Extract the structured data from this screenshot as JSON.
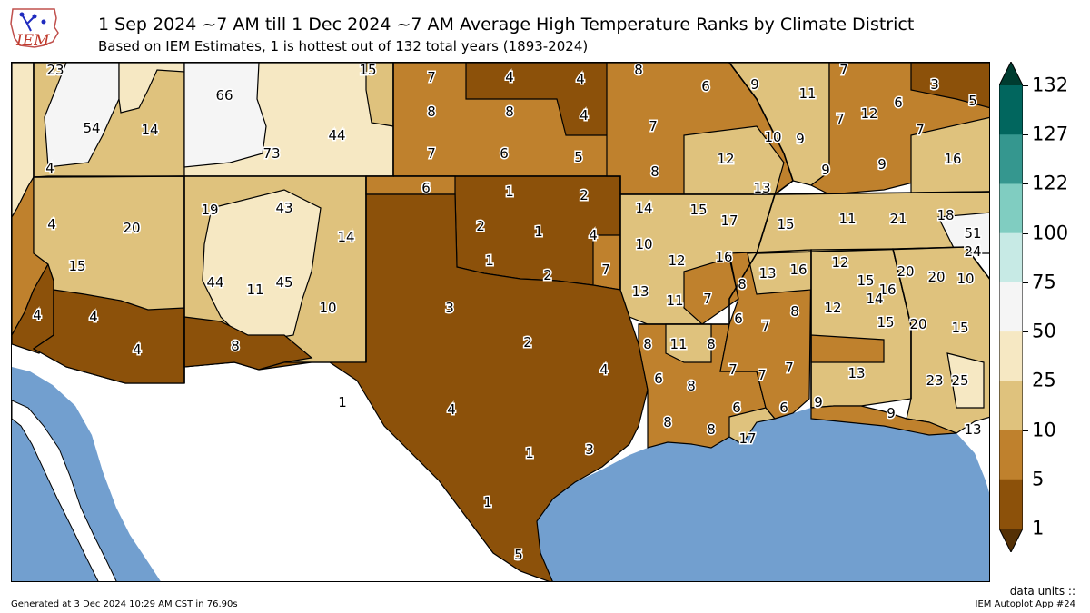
{
  "title": "1 Sep 2024 ~7 AM till 1 Dec 2024 ~7 AM Average High Temperature Ranks by Climate District",
  "subtitle": "Based on IEM Estimates, 1 is hottest out of 132 total years (1893-2024)",
  "logo_text": "IEM",
  "footer": {
    "generated": "Generated at 3 Dec 2024 10:29 AM CST in 76.90s",
    "units": "data units ::",
    "app": "IEM Autoplot App #24"
  },
  "colorbar": {
    "bins": [
      1,
      5,
      10,
      25,
      50,
      75,
      100,
      122,
      127,
      132
    ],
    "colors": [
      "#8c510a",
      "#bf812d",
      "#dfc27d",
      "#f6e8c3",
      "#f5f5f5",
      "#c7eae5",
      "#80cdc1",
      "#35978f",
      "#01665e"
    ],
    "under_color": "#543005",
    "over_color": "#003c30",
    "labels": [
      "132",
      "127",
      "122",
      "100",
      "75",
      "50",
      "25",
      "10",
      "5",
      "1"
    ]
  },
  "colors": {
    "ocean": "#729fcf",
    "land_outside": "#ffffff"
  },
  "districts": [
    {
      "rank": "23"
    },
    {
      "rank": "15"
    },
    {
      "rank": "7"
    },
    {
      "rank": "4"
    },
    {
      "rank": "4"
    },
    {
      "rank": "8"
    },
    {
      "rank": "6"
    },
    {
      "rank": "7"
    },
    {
      "rank": "3"
    },
    {
      "rank": "66"
    },
    {
      "rank": "54"
    },
    {
      "rank": "14"
    },
    {
      "rank": "8"
    },
    {
      "rank": "8"
    },
    {
      "rank": "4"
    },
    {
      "rank": "9"
    },
    {
      "rank": "11"
    },
    {
      "rank": "5"
    },
    {
      "rank": "44"
    },
    {
      "rank": "73"
    },
    {
      "rank": "7"
    },
    {
      "rank": "6"
    },
    {
      "rank": "5"
    },
    {
      "rank": "7"
    },
    {
      "rank": "12"
    },
    {
      "rank": "6"
    },
    {
      "rank": "4"
    },
    {
      "rank": "10"
    },
    {
      "rank": "9"
    },
    {
      "rank": "7"
    },
    {
      "rank": "16"
    },
    {
      "rank": "12"
    },
    {
      "rank": "9"
    },
    {
      "rank": "9"
    },
    {
      "rank": "8"
    },
    {
      "rank": "6"
    },
    {
      "rank": "1"
    },
    {
      "rank": "2"
    },
    {
      "rank": "13"
    },
    {
      "rank": "19"
    },
    {
      "rank": "43"
    },
    {
      "rank": "7"
    },
    {
      "rank": "20"
    },
    {
      "rank": "14"
    },
    {
      "rank": "15"
    },
    {
      "rank": "17"
    },
    {
      "rank": "15"
    },
    {
      "rank": "11"
    },
    {
      "rank": "21"
    },
    {
      "rank": "18"
    },
    {
      "rank": "2"
    },
    {
      "rank": "1"
    },
    {
      "rank": "4"
    },
    {
      "rank": "51"
    },
    {
      "rank": "24"
    },
    {
      "rank": "14"
    },
    {
      "rank": "4"
    },
    {
      "rank": "10"
    },
    {
      "rank": "15"
    },
    {
      "rank": "1"
    },
    {
      "rank": "7"
    },
    {
      "rank": "12"
    },
    {
      "rank": "16"
    },
    {
      "rank": "20"
    },
    {
      "rank": "20"
    },
    {
      "rank": "10"
    },
    {
      "rank": "44"
    },
    {
      "rank": "11"
    },
    {
      "rank": "45"
    },
    {
      "rank": "2"
    },
    {
      "rank": "13"
    },
    {
      "rank": "8"
    },
    {
      "rank": "13"
    },
    {
      "rank": "16"
    },
    {
      "rank": "12"
    },
    {
      "rank": "15"
    },
    {
      "rank": "16"
    },
    {
      "rank": "14"
    },
    {
      "rank": "10"
    },
    {
      "rank": "3"
    },
    {
      "rank": "11"
    },
    {
      "rank": "7"
    },
    {
      "rank": "6"
    },
    {
      "rank": "7"
    },
    {
      "rank": "8"
    },
    {
      "rank": "12"
    },
    {
      "rank": "15"
    },
    {
      "rank": "20"
    },
    {
      "rank": "15"
    },
    {
      "rank": "4"
    },
    {
      "rank": "4"
    },
    {
      "rank": "4"
    },
    {
      "rank": "2"
    },
    {
      "rank": "8"
    },
    {
      "rank": "11"
    },
    {
      "rank": "8"
    },
    {
      "rank": "8"
    },
    {
      "rank": "4"
    },
    {
      "rank": "7"
    },
    {
      "rank": "7"
    },
    {
      "rank": "7"
    },
    {
      "rank": "13"
    },
    {
      "rank": "6"
    },
    {
      "rank": "8"
    },
    {
      "rank": "23"
    },
    {
      "rank": "25"
    },
    {
      "rank": "1"
    },
    {
      "rank": "4"
    },
    {
      "rank": "6"
    },
    {
      "rank": "6"
    },
    {
      "rank": "9"
    },
    {
      "rank": "9"
    },
    {
      "rank": "8"
    },
    {
      "rank": "8"
    },
    {
      "rank": "17"
    },
    {
      "rank": "13"
    },
    {
      "rank": "3"
    },
    {
      "rank": "1"
    },
    {
      "rank": "1"
    },
    {
      "rank": "5"
    }
  ]
}
